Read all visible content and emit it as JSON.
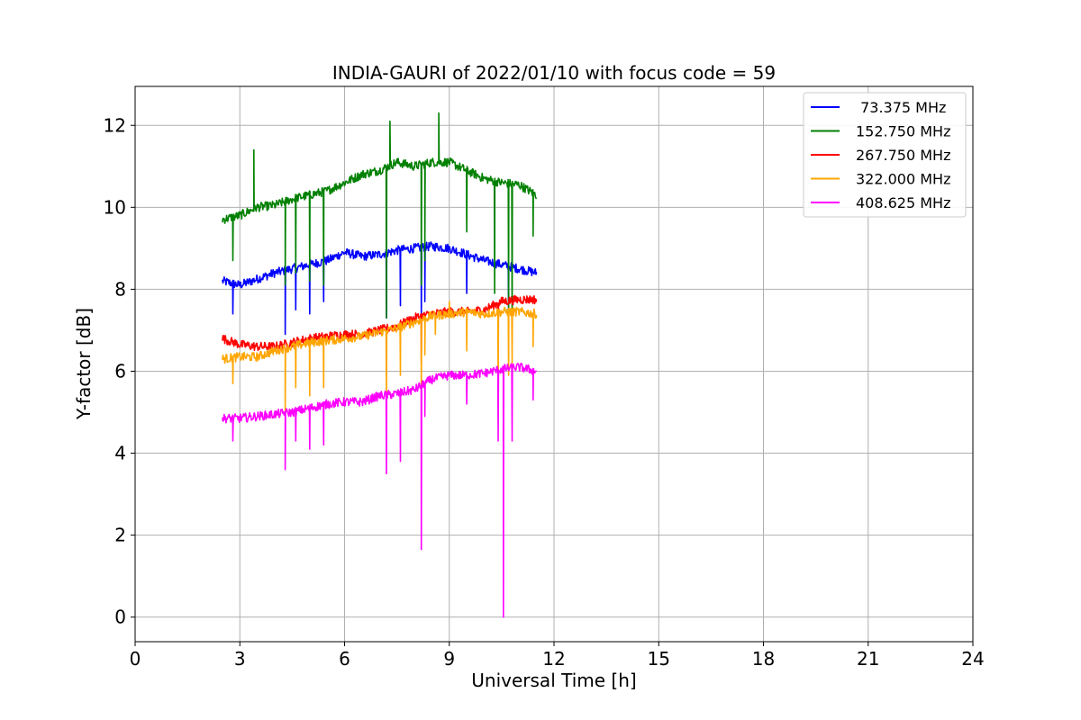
{
  "chart_data": {
    "type": "line",
    "title": "INDIA-GAURI of 2022/01/10 with focus code = 59",
    "xlabel": "Universal Time [h]",
    "ylabel": "Y-factor [dB]",
    "xlim": [
      0,
      24
    ],
    "ylim": [
      -0.6,
      12.95
    ],
    "x_ticks": [
      0,
      3,
      6,
      9,
      12,
      15,
      18,
      21,
      24
    ],
    "y_ticks": [
      0,
      2,
      4,
      6,
      8,
      10,
      12
    ],
    "grid": true,
    "legend_position": "top-right",
    "series": [
      {
        "name": " 73.375 MHz",
        "color": "#0000ff",
        "points": [
          [
            2.5,
            8.2
          ],
          [
            3.0,
            8.1
          ],
          [
            3.5,
            8.25
          ],
          [
            4.0,
            8.4
          ],
          [
            4.5,
            8.5
          ],
          [
            5.0,
            8.6
          ],
          [
            5.5,
            8.7
          ],
          [
            6.0,
            8.9
          ],
          [
            6.5,
            8.8
          ],
          [
            7.0,
            8.85
          ],
          [
            7.5,
            8.95
          ],
          [
            8.0,
            9.0
          ],
          [
            8.5,
            9.05
          ],
          [
            9.0,
            9.0
          ],
          [
            9.5,
            8.85
          ],
          [
            10.0,
            8.7
          ],
          [
            10.5,
            8.6
          ],
          [
            11.0,
            8.5
          ],
          [
            11.5,
            8.4
          ]
        ],
        "spikes": [
          [
            2.8,
            7.4
          ],
          [
            4.3,
            6.9
          ],
          [
            4.6,
            7.5
          ],
          [
            5.0,
            7.4
          ],
          [
            5.4,
            7.7
          ],
          [
            7.2,
            7.3
          ],
          [
            7.6,
            7.6
          ],
          [
            8.2,
            7.3
          ],
          [
            8.3,
            7.7
          ],
          [
            9.5,
            7.9
          ],
          [
            10.7,
            7.5
          ]
        ]
      },
      {
        "name": "152.750 MHz",
        "color": "#008000",
        "points": [
          [
            2.5,
            9.7
          ],
          [
            3.0,
            9.8
          ],
          [
            3.5,
            10.0
          ],
          [
            4.0,
            10.05
          ],
          [
            4.5,
            10.2
          ],
          [
            5.0,
            10.3
          ],
          [
            5.5,
            10.4
          ],
          [
            6.0,
            10.6
          ],
          [
            6.5,
            10.8
          ],
          [
            7.0,
            10.9
          ],
          [
            7.5,
            11.1
          ],
          [
            8.0,
            11.0
          ],
          [
            8.5,
            11.1
          ],
          [
            9.0,
            11.1
          ],
          [
            9.5,
            10.9
          ],
          [
            10.0,
            10.7
          ],
          [
            10.5,
            10.6
          ],
          [
            11.0,
            10.55
          ],
          [
            11.5,
            10.3
          ]
        ],
        "spikes": [
          [
            2.8,
            8.7
          ],
          [
            3.4,
            11.4
          ],
          [
            4.3,
            8.1
          ],
          [
            4.6,
            8.4
          ],
          [
            5.0,
            8.2
          ],
          [
            5.4,
            8.1
          ],
          [
            7.2,
            7.3
          ],
          [
            7.3,
            12.1
          ],
          [
            8.2,
            8.1
          ],
          [
            8.7,
            12.3
          ],
          [
            8.3,
            8.7
          ],
          [
            9.5,
            9.4
          ],
          [
            10.3,
            7.9
          ],
          [
            10.7,
            7.5
          ],
          [
            10.8,
            7.0
          ],
          [
            11.4,
            9.3
          ]
        ]
      },
      {
        "name": "267.750 MHz",
        "color": "#ff0000",
        "points": [
          [
            2.5,
            6.8
          ],
          [
            3.0,
            6.65
          ],
          [
            3.5,
            6.6
          ],
          [
            4.0,
            6.6
          ],
          [
            4.5,
            6.7
          ],
          [
            5.0,
            6.8
          ],
          [
            5.5,
            6.85
          ],
          [
            6.0,
            6.9
          ],
          [
            6.5,
            6.9
          ],
          [
            7.0,
            7.0
          ],
          [
            7.5,
            7.1
          ],
          [
            8.0,
            7.3
          ],
          [
            8.5,
            7.4
          ],
          [
            9.0,
            7.45
          ],
          [
            9.5,
            7.45
          ],
          [
            10.0,
            7.5
          ],
          [
            10.5,
            7.7
          ],
          [
            11.0,
            7.75
          ],
          [
            11.5,
            7.75
          ]
        ],
        "spikes": [
          [
            8.2,
            6.2
          ],
          [
            10.4,
            6.9
          ]
        ]
      },
      {
        "name": "322.000 MHz",
        "color": "#ffa500",
        "points": [
          [
            2.5,
            6.3
          ],
          [
            3.0,
            6.35
          ],
          [
            3.5,
            6.35
          ],
          [
            4.0,
            6.5
          ],
          [
            4.5,
            6.6
          ],
          [
            5.0,
            6.7
          ],
          [
            5.5,
            6.75
          ],
          [
            6.0,
            6.8
          ],
          [
            6.5,
            6.85
          ],
          [
            7.0,
            6.95
          ],
          [
            7.5,
            7.05
          ],
          [
            8.0,
            7.2
          ],
          [
            8.5,
            7.35
          ],
          [
            9.0,
            7.4
          ],
          [
            9.5,
            7.45
          ],
          [
            10.0,
            7.4
          ],
          [
            10.5,
            7.45
          ],
          [
            11.0,
            7.45
          ],
          [
            11.5,
            7.4
          ]
        ],
        "spikes": [
          [
            2.8,
            5.7
          ],
          [
            4.3,
            5.0
          ],
          [
            4.6,
            5.6
          ],
          [
            5.0,
            5.4
          ],
          [
            5.4,
            5.6
          ],
          [
            7.2,
            5.3
          ],
          [
            7.6,
            5.9
          ],
          [
            8.2,
            5.6
          ],
          [
            8.3,
            6.4
          ],
          [
            8.6,
            6.9
          ],
          [
            9.0,
            7.7
          ],
          [
            9.5,
            6.5
          ],
          [
            10.4,
            5.3
          ],
          [
            10.7,
            5.9
          ],
          [
            10.8,
            6.2
          ],
          [
            11.4,
            6.6
          ]
        ]
      },
      {
        "name": "408.625 MHz",
        "color": "#ff00ff",
        "points": [
          [
            2.5,
            4.85
          ],
          [
            3.0,
            4.85
          ],
          [
            3.5,
            4.9
          ],
          [
            4.0,
            4.95
          ],
          [
            4.5,
            5.0
          ],
          [
            5.0,
            5.1
          ],
          [
            5.5,
            5.2
          ],
          [
            6.0,
            5.25
          ],
          [
            6.5,
            5.25
          ],
          [
            7.0,
            5.4
          ],
          [
            7.5,
            5.45
          ],
          [
            8.0,
            5.55
          ],
          [
            8.5,
            5.8
          ],
          [
            9.0,
            5.9
          ],
          [
            9.5,
            5.9
          ],
          [
            10.0,
            5.95
          ],
          [
            10.5,
            6.05
          ],
          [
            11.0,
            6.1
          ],
          [
            11.5,
            6.0
          ]
        ],
        "spikes": [
          [
            2.8,
            4.3
          ],
          [
            4.3,
            3.6
          ],
          [
            4.6,
            4.3
          ],
          [
            5.0,
            4.1
          ],
          [
            5.4,
            4.2
          ],
          [
            7.2,
            3.5
          ],
          [
            7.6,
            3.8
          ],
          [
            8.2,
            1.65
          ],
          [
            8.3,
            4.9
          ],
          [
            9.5,
            5.2
          ],
          [
            10.4,
            4.3
          ],
          [
            10.55,
            0.0
          ],
          [
            10.8,
            4.3
          ],
          [
            11.4,
            5.3
          ]
        ]
      }
    ]
  }
}
